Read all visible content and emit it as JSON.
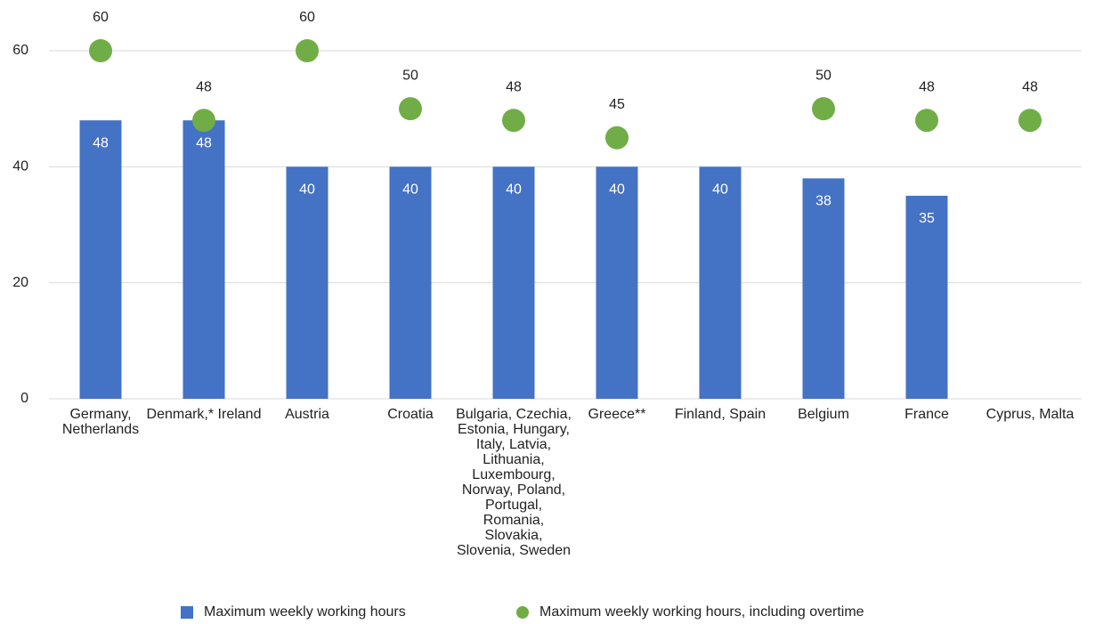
{
  "chart_data": {
    "type": "bar",
    "categories": [
      "Germany, Netherlands",
      "Denmark,* Ireland",
      "Austria",
      "Croatia",
      "Bulgaria, Czechia, Estonia, Hungary, Italy, Latvia, Lithuania, Luxembourg, Norway, Poland, Portugal, Romania, Slovakia, Slovenia, Sweden",
      "Greece**",
      "Finland, Spain",
      "Belgium",
      "France",
      "Cyprus, Malta"
    ],
    "series": [
      {
        "name": "Maximum weekly working hours",
        "type": "bar",
        "color": "#4472c4",
        "values": [
          48,
          48,
          40,
          40,
          40,
          40,
          40,
          38,
          35,
          null
        ]
      },
      {
        "name": "Maximum weekly working hours, including overtime",
        "type": "scatter",
        "color": "#70ad47",
        "values": [
          60,
          48,
          60,
          50,
          48,
          45,
          null,
          50,
          48,
          48
        ]
      }
    ],
    "ylim": [
      0,
      60
    ],
    "yticks": [
      0,
      20,
      40,
      60
    ],
    "grid": true,
    "legend": "bottom"
  }
}
